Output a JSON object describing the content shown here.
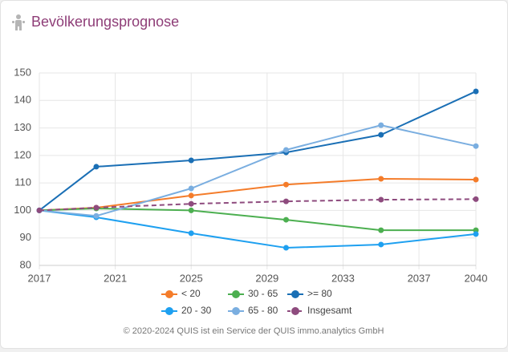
{
  "chart_data": {
    "type": "line",
    "title": "Bevölkerungsprognose",
    "footer": "© 2020-2024 QUIS ist ein Service der QUIS immo.analytics GmbH",
    "x": [
      2017,
      2020,
      2025,
      2030,
      2035,
      2040
    ],
    "xlim": [
      2017,
      2040
    ],
    "xticks": [
      2017,
      2021,
      2025,
      2029,
      2033,
      2037,
      2040
    ],
    "ylim": [
      80,
      150
    ],
    "yticks": [
      80,
      90,
      100,
      110,
      120,
      130,
      140,
      150
    ],
    "grid": true,
    "series": [
      {
        "name": "< 20",
        "color": "#f47c2a",
        "values": [
          100,
          101,
          105.4,
          109.4,
          111.5,
          111.2
        ]
      },
      {
        "name": "30 - 65",
        "color": "#4caf50",
        "values": [
          100,
          100.7,
          100,
          96.6,
          92.8,
          92.8
        ]
      },
      {
        "name": ">= 80",
        "color": "#1a6fb5",
        "values": [
          100,
          115.9,
          118.2,
          121.1,
          127.5,
          143.3
        ]
      },
      {
        "name": "20 - 30",
        "color": "#1ea0f0",
        "values": [
          100,
          97.5,
          91.7,
          86.4,
          87.6,
          91.4
        ]
      },
      {
        "name": "65 - 80",
        "color": "#7aaee0",
        "values": [
          100,
          98,
          108,
          122,
          131,
          123.4
        ]
      },
      {
        "name": "Insgesamt",
        "color": "#8e4b7e",
        "dashed": true,
        "values": [
          100,
          101,
          102.4,
          103.3,
          103.9,
          104.1
        ]
      }
    ]
  }
}
